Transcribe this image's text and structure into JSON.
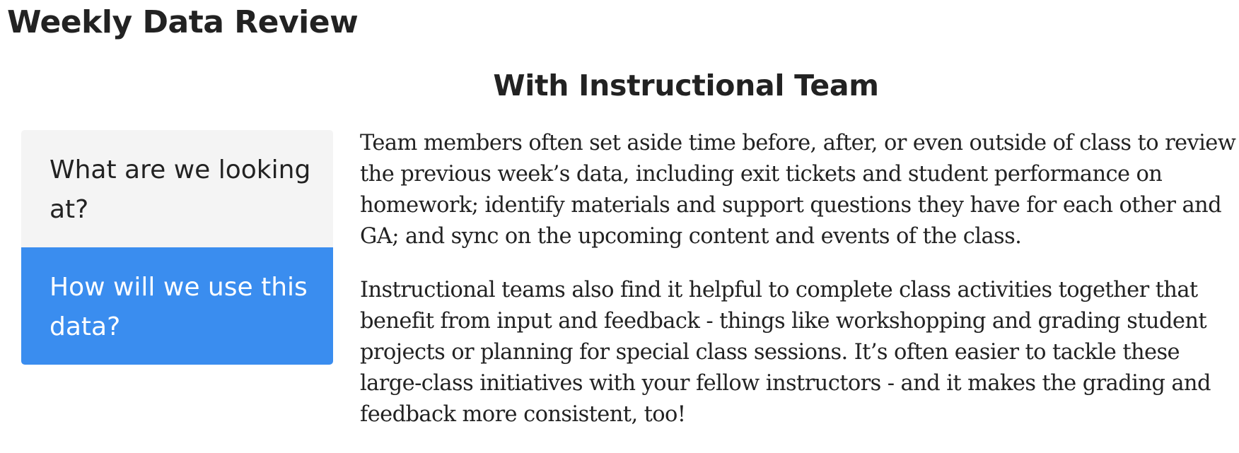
{
  "page": {
    "title": "Weekly Data Review"
  },
  "section": {
    "title": "With Instructional Team"
  },
  "tabs": [
    {
      "label": "What are we looking at?",
      "active": false
    },
    {
      "label": "How will we use this data?",
      "active": true
    }
  ],
  "content": {
    "paragraphs": [
      "Team members often set aside time before, after, or even outside of class to review the previous week’s data, including exit tickets and student performance on homework; identify materials and support questions they have for each other and GA; and sync on the upcoming content and events of the class.",
      "Instructional teams also find it helpful to complete class activities together that benefit from input and feedback - things like workshopping and grading student projects or planning for special class sessions. It’s often easier to tackle these large-class initiatives with your fellow instructors - and it makes the grading and feedback more consistent, too!"
    ]
  },
  "colors": {
    "active_tab_bg": "#3a8def",
    "inactive_tab_bg": "#f4f4f4",
    "text": "#222222"
  }
}
